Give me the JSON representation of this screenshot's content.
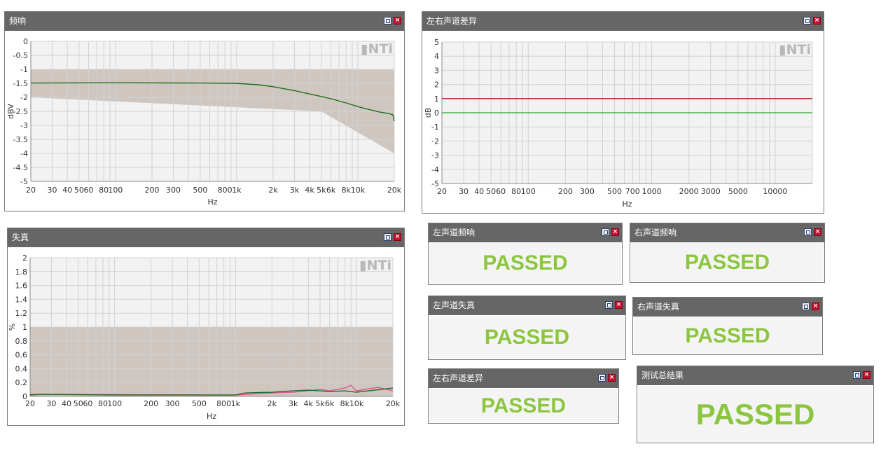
{
  "freq_panel": {
    "title": "频响"
  },
  "diff_panel": {
    "title": "左右声道差异"
  },
  "dist_panel": {
    "title": "失真"
  },
  "logo_text": "▮NTi",
  "results": [
    {
      "title": "左声道频响",
      "status": "PASSED"
    },
    {
      "title": "右声道频响",
      "status": "PASSED"
    },
    {
      "title": "左声道失真",
      "status": "PASSED"
    },
    {
      "title": "右声道失真",
      "status": "PASSED"
    },
    {
      "title": "左右声道差异",
      "status": "PASSED"
    },
    {
      "title": "测试总结果",
      "status": "PASSED"
    }
  ],
  "chart_data": [
    {
      "type": "line",
      "name": "freq_response",
      "x_scale": "log",
      "xlim": [
        20,
        20000
      ],
      "ylim": [
        -5,
        0
      ],
      "xlabel": "Hz",
      "ylabel": "dBV",
      "x_tick_labels": [
        "20",
        "30",
        "40",
        "50",
        "60",
        "80",
        "100",
        "200",
        "300",
        "500",
        "800",
        "1k",
        "2k",
        "3k",
        "4k",
        "5k",
        "6k",
        "8k",
        "10k",
        "20k"
      ],
      "x_tick_values": [
        20,
        30,
        40,
        50,
        60,
        80,
        100,
        200,
        300,
        500,
        800,
        1000,
        2000,
        3000,
        4000,
        5000,
        6000,
        8000,
        10000,
        20000
      ],
      "y_tick_labels": [
        "0",
        "-0.5",
        "-1",
        "-1.5",
        "-2",
        "-2.5",
        "-3",
        "-3.5",
        "-4",
        "-4.5",
        "-5"
      ],
      "y_tick_values": [
        0,
        -0.5,
        -1,
        -1.5,
        -2,
        -2.5,
        -3,
        -3.5,
        -4,
        -4.5,
        -5
      ],
      "tolerance_band": {
        "upper": [
          [
            20,
            -1
          ],
          [
            20000,
            -1
          ]
        ],
        "lower": [
          [
            20,
            -2
          ],
          [
            5000,
            -2.5
          ],
          [
            20000,
            -4
          ]
        ],
        "color": "#cfc6c0"
      },
      "series": [
        {
          "color": "#1f6e1f",
          "points": [
            [
              20,
              -1.49
            ],
            [
              100,
              -1.48
            ],
            [
              500,
              -1.49
            ],
            [
              1000,
              -1.5
            ],
            [
              1500,
              -1.55
            ],
            [
              2000,
              -1.62
            ],
            [
              3000,
              -1.76
            ],
            [
              4000,
              -1.88
            ],
            [
              5000,
              -1.97
            ],
            [
              6000,
              -2.05
            ],
            [
              8000,
              -2.2
            ],
            [
              10000,
              -2.33
            ],
            [
              12000,
              -2.42
            ],
            [
              15000,
              -2.52
            ],
            [
              18000,
              -2.58
            ],
            [
              19500,
              -2.62
            ],
            [
              20000,
              -2.85
            ]
          ]
        }
      ],
      "grid": true
    },
    {
      "type": "line",
      "name": "lr_difference",
      "x_scale": "log",
      "xlim": [
        20,
        20000
      ],
      "ylim": [
        -5,
        5
      ],
      "xlabel": "Hz",
      "ylabel": "dB",
      "x_tick_labels": [
        "20",
        "30",
        "40",
        "50",
        "60",
        "80",
        "100",
        "200",
        "300",
        "500",
        "700",
        "1000",
        "2000",
        "3000",
        "5000",
        "10000"
      ],
      "x_tick_values": [
        20,
        30,
        40,
        50,
        60,
        80,
        100,
        200,
        300,
        500,
        700,
        1000,
        2000,
        3000,
        5000,
        10000
      ],
      "y_tick_labels": [
        "5",
        "4",
        "3",
        "2",
        "1",
        "0",
        "-1",
        "-2",
        "-3",
        "-4",
        "-5"
      ],
      "y_tick_values": [
        5,
        4,
        3,
        2,
        1,
        0,
        -1,
        -2,
        -3,
        -4,
        -5
      ],
      "limit_lines": [
        {
          "y": 1,
          "color": "#b22222"
        }
      ],
      "series": [
        {
          "color": "#4caf50",
          "points": [
            [
              20,
              0
            ],
            [
              20000,
              0
            ]
          ]
        }
      ],
      "grid": true
    },
    {
      "type": "line",
      "name": "distortion",
      "x_scale": "log",
      "xlim": [
        20,
        20000
      ],
      "ylim": [
        0,
        2
      ],
      "xlabel": "Hz",
      "ylabel": "%",
      "x_tick_labels": [
        "20",
        "30",
        "40",
        "50",
        "60",
        "80",
        "100",
        "200",
        "300",
        "500",
        "800",
        "1k",
        "2k",
        "3k",
        "4k",
        "5k",
        "6k",
        "8k",
        "10k",
        "20k"
      ],
      "x_tick_values": [
        20,
        30,
        40,
        50,
        60,
        80,
        100,
        200,
        300,
        500,
        800,
        1000,
        2000,
        3000,
        4000,
        5000,
        6000,
        8000,
        10000,
        20000
      ],
      "y_tick_labels": [
        "2",
        "1.8",
        "1.6",
        "1.4",
        "1.2",
        "1",
        "0.8",
        "0.6",
        "0.4",
        "0.2",
        "0"
      ],
      "y_tick_values": [
        2,
        1.8,
        1.6,
        1.4,
        1.2,
        1,
        0.8,
        0.6,
        0.4,
        0.2,
        0
      ],
      "tolerance_band": {
        "upper": [
          [
            20,
            1
          ],
          [
            20000,
            1
          ]
        ],
        "lower": [
          [
            20,
            0
          ],
          [
            20000,
            0
          ]
        ],
        "color": "#cfc6c0"
      },
      "series": [
        {
          "color": "#e0559a",
          "points": [
            [
              20,
              0.03
            ],
            [
              1000,
              0.02
            ],
            [
              2000,
              0.05
            ],
            [
              3000,
              0.06
            ],
            [
              4000,
              0.08
            ],
            [
              5000,
              0.1
            ],
            [
              6000,
              0.08
            ],
            [
              8000,
              0.12
            ],
            [
              9000,
              0.16
            ],
            [
              10000,
              0.08
            ],
            [
              15000,
              0.13
            ],
            [
              20000,
              0.08
            ]
          ]
        },
        {
          "color": "#1f6e1f",
          "points": [
            [
              20,
              0.02
            ],
            [
              25,
              0.03
            ],
            [
              100,
              0.02
            ],
            [
              1000,
              0.02
            ],
            [
              1200,
              0.05
            ],
            [
              2000,
              0.06
            ],
            [
              3000,
              0.08
            ],
            [
              4000,
              0.09
            ],
            [
              6000,
              0.07
            ],
            [
              8000,
              0.08
            ],
            [
              10000,
              0.06
            ],
            [
              20000,
              0.12
            ]
          ]
        }
      ],
      "grid": true
    }
  ]
}
